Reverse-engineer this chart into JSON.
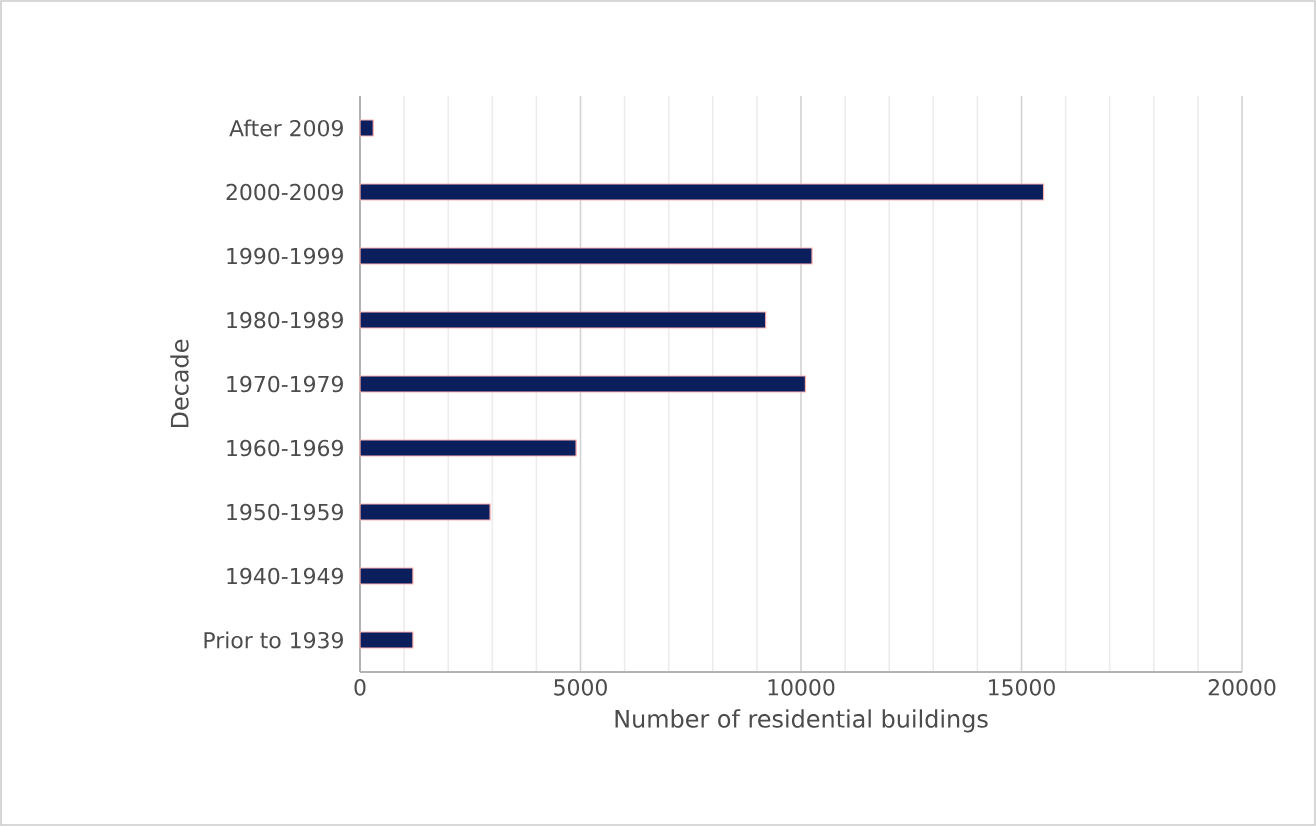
{
  "chart_data": {
    "type": "bar",
    "orientation": "horizontal",
    "categories": [
      "After 2009",
      "2000-2009",
      "1990-1999",
      "1980-1989",
      "1970-1979",
      "1960-1969",
      "1950-1959",
      "1940-1949",
      "Prior to 1939"
    ],
    "values": [
      300,
      15500,
      10250,
      9200,
      10100,
      4900,
      2950,
      1200,
      1200
    ],
    "color": "#0b1f5c",
    "xlim": [
      0,
      20000
    ],
    "xticks": [
      0,
      5000,
      10000,
      15000,
      20000
    ],
    "xlabel": "Number of residential buildings",
    "ylabel": "Decade",
    "grid": "x"
  }
}
